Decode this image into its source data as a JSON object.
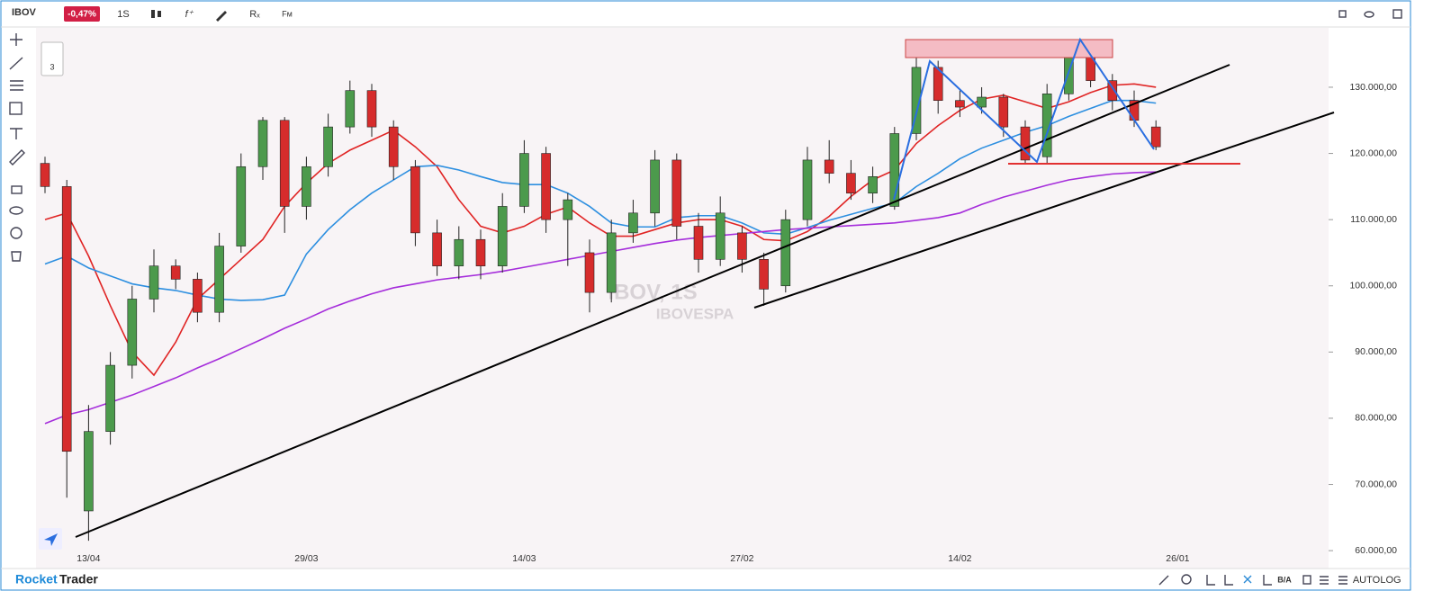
{
  "toolbar": {
    "symbol": "IBOV",
    "change": "-0,47%",
    "interval": "1S",
    "side_count": "3"
  },
  "footer": {
    "brand_a": "Rocket",
    "brand_b": "Trader",
    "ba": "B/A",
    "auto": "AUTO",
    "log": "LOG"
  },
  "chart_data": {
    "type": "candlestick",
    "title": "IBOV, 1S",
    "subtitle": "IBOVESPA",
    "up_color": "#4c9a4c",
    "down_color": "#d62c2c",
    "categories": [
      null,
      null,
      "13/04",
      null,
      null,
      null,
      null,
      null,
      null,
      null,
      null,
      null,
      "29/03",
      null,
      null,
      null,
      null,
      null,
      null,
      null,
      null,
      null,
      "14/03",
      null,
      null,
      null,
      null,
      null,
      null,
      null,
      null,
      null,
      "27/02",
      null,
      null,
      null,
      null,
      null,
      null,
      null,
      null,
      null,
      "14/02",
      null,
      null,
      null,
      null,
      null,
      null,
      null,
      null,
      null,
      "26/01"
    ],
    "open": [
      118500,
      115000,
      66000,
      78000,
      88000,
      98000,
      103000,
      101000,
      96000,
      106000,
      118000,
      125000,
      112000,
      118000,
      124000,
      129500,
      124000,
      118000,
      108000,
      103000,
      107000,
      103000,
      112000,
      120000,
      110000,
      105000,
      99000,
      108000,
      111000,
      119000,
      109000,
      104000,
      108000,
      104000,
      100000,
      110000,
      119000,
      117000,
      114000,
      112000,
      123000,
      133000,
      128000,
      127000,
      128500,
      124000,
      119500,
      129000,
      135500,
      131000,
      128000,
      124000,
      null
    ],
    "high": [
      119500,
      116000,
      82000,
      90000,
      100000,
      105500,
      104000,
      102000,
      108000,
      120000,
      125500,
      125500,
      119500,
      126000,
      131000,
      130500,
      125000,
      119000,
      110000,
      109000,
      108500,
      114000,
      122000,
      121000,
      114000,
      107000,
      110000,
      113000,
      120500,
      120000,
      111000,
      113500,
      109000,
      105000,
      111500,
      121000,
      122000,
      119000,
      118000,
      124000,
      134500,
      134000,
      129500,
      130000,
      129000,
      125000,
      130500,
      137000,
      136000,
      132000,
      129500,
      125000,
      null
    ],
    "low": [
      114000,
      68000,
      61500,
      76000,
      86000,
      96000,
      99500,
      94500,
      94500,
      105000,
      116000,
      108000,
      110000,
      116500,
      123000,
      122500,
      116000,
      106000,
      101500,
      101000,
      101000,
      102000,
      111000,
      108000,
      103000,
      96000,
      97500,
      106500,
      109000,
      107000,
      102000,
      103000,
      102000,
      97000,
      99000,
      109000,
      115500,
      113000,
      112500,
      111500,
      122000,
      126000,
      125500,
      126000,
      122500,
      118500,
      118500,
      128000,
      130000,
      126500,
      124000,
      120500,
      null
    ],
    "close": [
      115000,
      75000,
      78000,
      88000,
      98000,
      103000,
      101000,
      96000,
      106000,
      118000,
      125000,
      112000,
      118000,
      124000,
      129500,
      124000,
      118000,
      108000,
      103000,
      107000,
      103000,
      112000,
      120000,
      110000,
      113000,
      99000,
      108000,
      111000,
      119000,
      109000,
      104000,
      111000,
      104000,
      99500,
      110000,
      119000,
      117000,
      114000,
      116500,
      123000,
      133000,
      128000,
      127000,
      128500,
      124000,
      119000,
      129000,
      135500,
      131000,
      128000,
      125000,
      121000,
      null
    ],
    "lines": [
      {
        "color": "#e02424",
        "values": [
          110000,
          111000,
          104500,
          97000,
          90000,
          86500,
          91500,
          98000,
          101000,
          104000,
          107000,
          112000,
          115500,
          118500,
          120500,
          122000,
          123500,
          121000,
          118000,
          113000,
          109000,
          108000,
          109000,
          110800,
          111900,
          109500,
          107500,
          107500,
          108500,
          109500,
          110000,
          110000,
          109000,
          107000,
          106800,
          108200,
          110500,
          113500,
          116000,
          117500,
          121500,
          124200,
          126500,
          128200,
          128800,
          127800,
          126800,
          127800,
          129200,
          130300,
          130500,
          130000,
          null
        ]
      },
      {
        "color": "#2d8fe0",
        "values": [
          103300,
          104500,
          102700,
          101500,
          100300,
          99700,
          99300,
          98600,
          98000,
          97800,
          97900,
          98600,
          104800,
          108500,
          111500,
          114000,
          116000,
          118000,
          118200,
          117500,
          116500,
          115600,
          115300,
          115300,
          114000,
          112000,
          109500,
          108900,
          108900,
          110300,
          110600,
          110600,
          109500,
          108000,
          107800,
          108800,
          109900,
          110800,
          111700,
          112500,
          115000,
          117000,
          119200,
          120800,
          122000,
          123200,
          124200,
          125600,
          126800,
          128000,
          128000,
          127600,
          null
        ]
      },
      {
        "color": "#a52ddb",
        "values": [
          79200,
          80500,
          81300,
          82400,
          83500,
          84800,
          86100,
          87600,
          89000,
          90500,
          92000,
          93600,
          95000,
          96500,
          97700,
          98800,
          99700,
          100300,
          100900,
          101300,
          101700,
          102200,
          102800,
          103400,
          104000,
          104600,
          105200,
          105800,
          106400,
          106900,
          107300,
          107600,
          107900,
          108200,
          108500,
          108700,
          108900,
          109100,
          109300,
          109500,
          109900,
          110300,
          111000,
          112300,
          113400,
          114300,
          115200,
          116000,
          116500,
          116900,
          117100,
          117200,
          null
        ]
      }
    ],
    "ylim": [
      57300,
      139100
    ],
    "yticks": [
      {
        "value": 130000,
        "label": "130.000,00"
      },
      {
        "value": 120000,
        "label": "120.000,00"
      },
      {
        "value": 110000,
        "label": "110.000,00"
      },
      {
        "value": 100000,
        "label": "100.000,00"
      },
      {
        "value": 90000,
        "label": "90.000,00"
      },
      {
        "value": 80000,
        "label": "80.000,00"
      },
      {
        "value": 70000,
        "label": "70.000,00"
      },
      {
        "value": 60000,
        "label": "60.000,00"
      }
    ]
  }
}
